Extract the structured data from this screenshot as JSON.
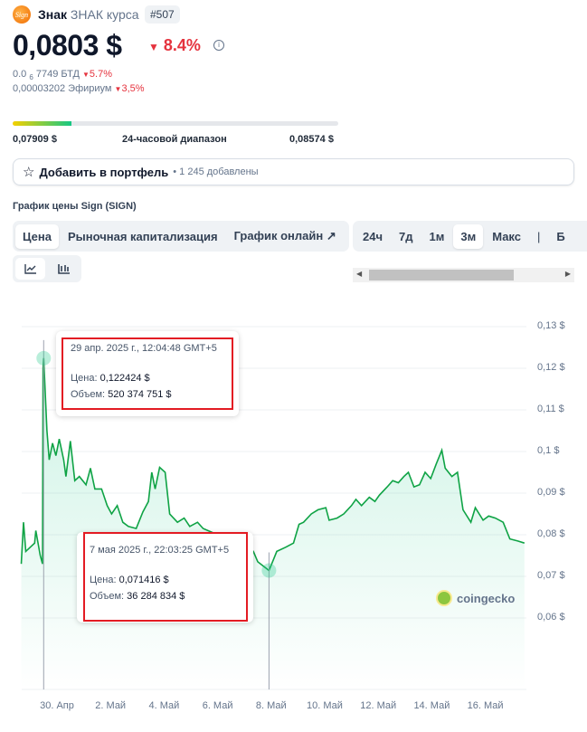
{
  "coin": {
    "name": "Знак",
    "subtitle": "ЗНАК курса",
    "rank": "#507",
    "logo_text": "Sign",
    "price": "0,0803 $",
    "change": "8.4%",
    "btc_prefix": "0.0",
    "btc_sub": "6",
    "btc_value": "7749 БТД",
    "btc_change": "5.7%",
    "eth_value": "0,00003202 Эфириум",
    "eth_change": "3,5%"
  },
  "range": {
    "low": "0,07909 $",
    "label": "24-часовой диапазон",
    "high": "0,08574 $",
    "position_percent": 18
  },
  "portfolio": {
    "label": "Добавить в портфель",
    "count": "• 1 245 добавлены"
  },
  "chart_title": "График цены Sign (SIGN)",
  "tabs": [
    {
      "label": "Цена",
      "active": true
    },
    {
      "label": "Рыночная капитализация"
    },
    {
      "label": "График онлайн"
    }
  ],
  "periods": [
    {
      "label": "24ч"
    },
    {
      "label": "7д"
    },
    {
      "label": "1м"
    },
    {
      "label": "3м",
      "active": true
    },
    {
      "label": "Макс"
    },
    {
      "label": "|"
    },
    {
      "label": "Б"
    }
  ],
  "chart_types": [
    "line-chart-icon",
    "candlestick-icon"
  ],
  "tooltips": [
    {
      "date": "29 апр. 2025 г., 12:04:48 GMT+5",
      "price_label": "Цена:",
      "price": "0,122424 $",
      "volume_label": "Объем:",
      "volume": "520 374 751 $"
    },
    {
      "date": "7 мая 2025 г., 22:03:25 GMT+5",
      "price_label": "Цена:",
      "price": "0,071416 $",
      "volume_label": "Объем:",
      "volume": "36 284 834 $"
    }
  ],
  "watermark": "coingecko",
  "colors": {
    "line": "#0fa345",
    "down": "#e5333e",
    "highlight": "#e31b23"
  },
  "chart_data": {
    "type": "line",
    "y_ticks": [
      "0,13 $",
      "0,12 $",
      "0,11 $",
      "0,1 $",
      "0,09 $",
      "0,08 $",
      "0,07 $",
      "0,06 $"
    ],
    "y_values": [
      0.13,
      0.12,
      0.11,
      0.1,
      0.09,
      0.08,
      0.07,
      0.06
    ],
    "x_ticks": [
      "30. Апр",
      "2. Май",
      "4. Май",
      "6. Май",
      "8. Май",
      "10. Май",
      "12. Май",
      "14. Май",
      "16. Май"
    ],
    "x_tick_dates": [
      "2025-04-30",
      "2025-05-02",
      "2025-05-04",
      "2025-05-06",
      "2025-05-08",
      "2025-05-10",
      "2025-05-12",
      "2025-05-14",
      "2025-05-16"
    ],
    "ylim": [
      0.06,
      0.13
    ],
    "grid": true,
    "points": [
      [
        "2025-04-28T16:00",
        0.073
      ],
      [
        "2025-04-28T18:00",
        0.083
      ],
      [
        "2025-04-28T20:00",
        0.076
      ],
      [
        "2025-04-29T00:00",
        0.077
      ],
      [
        "2025-04-29T04:00",
        0.078
      ],
      [
        "2025-04-29T05:00",
        0.081
      ],
      [
        "2025-04-29T09:00",
        0.075
      ],
      [
        "2025-04-29T11:00",
        0.073
      ],
      [
        "2025-04-29T11:30",
        0.12
      ],
      [
        "2025-04-29T12:04",
        0.122424
      ],
      [
        "2025-04-29T15:00",
        0.105
      ],
      [
        "2025-04-29T17:00",
        0.098
      ],
      [
        "2025-04-29T20:00",
        0.102
      ],
      [
        "2025-04-29T23:00",
        0.099
      ],
      [
        "2025-04-30T02:00",
        0.103
      ],
      [
        "2025-04-30T06:00",
        0.098
      ],
      [
        "2025-04-30T08:00",
        0.094
      ],
      [
        "2025-04-30T12:00",
        0.1025
      ],
      [
        "2025-04-30T16:00",
        0.093
      ],
      [
        "2025-04-30T20:00",
        0.094
      ],
      [
        "2025-05-01T02:00",
        0.092
      ],
      [
        "2025-05-01T06:00",
        0.096
      ],
      [
        "2025-05-01T10:00",
        0.091
      ],
      [
        "2025-05-01T16:00",
        0.091
      ],
      [
        "2025-05-01T21:00",
        0.087
      ],
      [
        "2025-05-02T01:00",
        0.085
      ],
      [
        "2025-05-02T06:00",
        0.087
      ],
      [
        "2025-05-02T11:00",
        0.083
      ],
      [
        "2025-05-02T16:00",
        0.082
      ],
      [
        "2025-05-02T23:00",
        0.0815
      ],
      [
        "2025-05-03T05:00",
        0.0855
      ],
      [
        "2025-05-03T10:00",
        0.088
      ],
      [
        "2025-05-03T13:00",
        0.095
      ],
      [
        "2025-05-03T16:00",
        0.091
      ],
      [
        "2025-05-03T20:00",
        0.0962
      ],
      [
        "2025-05-04T01:00",
        0.095
      ],
      [
        "2025-05-04T05:00",
        0.085
      ],
      [
        "2025-05-04T12:00",
        0.083
      ],
      [
        "2025-05-04T18:00",
        0.084
      ],
      [
        "2025-05-04T23:00",
        0.082
      ],
      [
        "2025-05-05T06:00",
        0.083
      ],
      [
        "2025-05-05T11:00",
        0.0815
      ],
      [
        "2025-05-06T00:00",
        0.08
      ],
      [
        "2025-05-06T16:00",
        0.078
      ],
      [
        "2025-05-07T04:00",
        0.077
      ],
      [
        "2025-05-07T08:00",
        0.076
      ],
      [
        "2025-05-07T12:00",
        0.0735
      ],
      [
        "2025-05-07T22:03",
        0.071416
      ],
      [
        "2025-05-08T02:00",
        0.074
      ],
      [
        "2025-05-08T05:00",
        0.076
      ],
      [
        "2025-05-08T13:00",
        0.077
      ],
      [
        "2025-05-08T20:00",
        0.078
      ],
      [
        "2025-05-09T01:00",
        0.0825
      ],
      [
        "2025-05-09T05:00",
        0.083
      ],
      [
        "2025-05-09T12:00",
        0.085
      ],
      [
        "2025-05-09T18:00",
        0.086
      ],
      [
        "2025-05-10T01:00",
        0.0865
      ],
      [
        "2025-05-10T04:00",
        0.0835
      ],
      [
        "2025-05-10T11:00",
        0.084
      ],
      [
        "2025-05-10T17:00",
        0.085
      ],
      [
        "2025-05-11T00:00",
        0.087
      ],
      [
        "2025-05-11T04:00",
        0.0885
      ],
      [
        "2025-05-11T09:00",
        0.087
      ],
      [
        "2025-05-11T16:00",
        0.089
      ],
      [
        "2025-05-11T21:00",
        0.088
      ],
      [
        "2025-05-12T01:00",
        0.0895
      ],
      [
        "2025-05-12T08:00",
        0.0915
      ],
      [
        "2025-05-12T13:00",
        0.093
      ],
      [
        "2025-05-12T18:00",
        0.0925
      ],
      [
        "2025-05-12T23:00",
        0.094
      ],
      [
        "2025-05-13T03:00",
        0.095
      ],
      [
        "2025-05-13T08:00",
        0.0915
      ],
      [
        "2025-05-13T13:00",
        0.092
      ],
      [
        "2025-05-13T18:00",
        0.095
      ],
      [
        "2025-05-13T23:00",
        0.0935
      ],
      [
        "2025-05-14T04:00",
        0.097
      ],
      [
        "2025-05-14T09:00",
        0.1003
      ],
      [
        "2025-05-14T12:00",
        0.096
      ],
      [
        "2025-05-14T18:00",
        0.094
      ],
      [
        "2025-05-14T23:00",
        0.095
      ],
      [
        "2025-05-15T04:00",
        0.086
      ],
      [
        "2025-05-15T11:00",
        0.083
      ],
      [
        "2025-05-15T15:00",
        0.0865
      ],
      [
        "2025-05-15T22:00",
        0.0835
      ],
      [
        "2025-05-16T03:00",
        0.0845
      ],
      [
        "2025-05-16T09:00",
        0.084
      ],
      [
        "2025-05-16T16:00",
        0.083
      ],
      [
        "2025-05-16T22:00",
        0.079
      ],
      [
        "2025-05-17T05:00",
        0.0785
      ],
      [
        "2025-05-17T11:00",
        0.078
      ]
    ],
    "highlighted": [
      [
        "2025-04-29T12:04",
        0.122424
      ],
      [
        "2025-05-07T22:03",
        0.071416
      ]
    ]
  }
}
